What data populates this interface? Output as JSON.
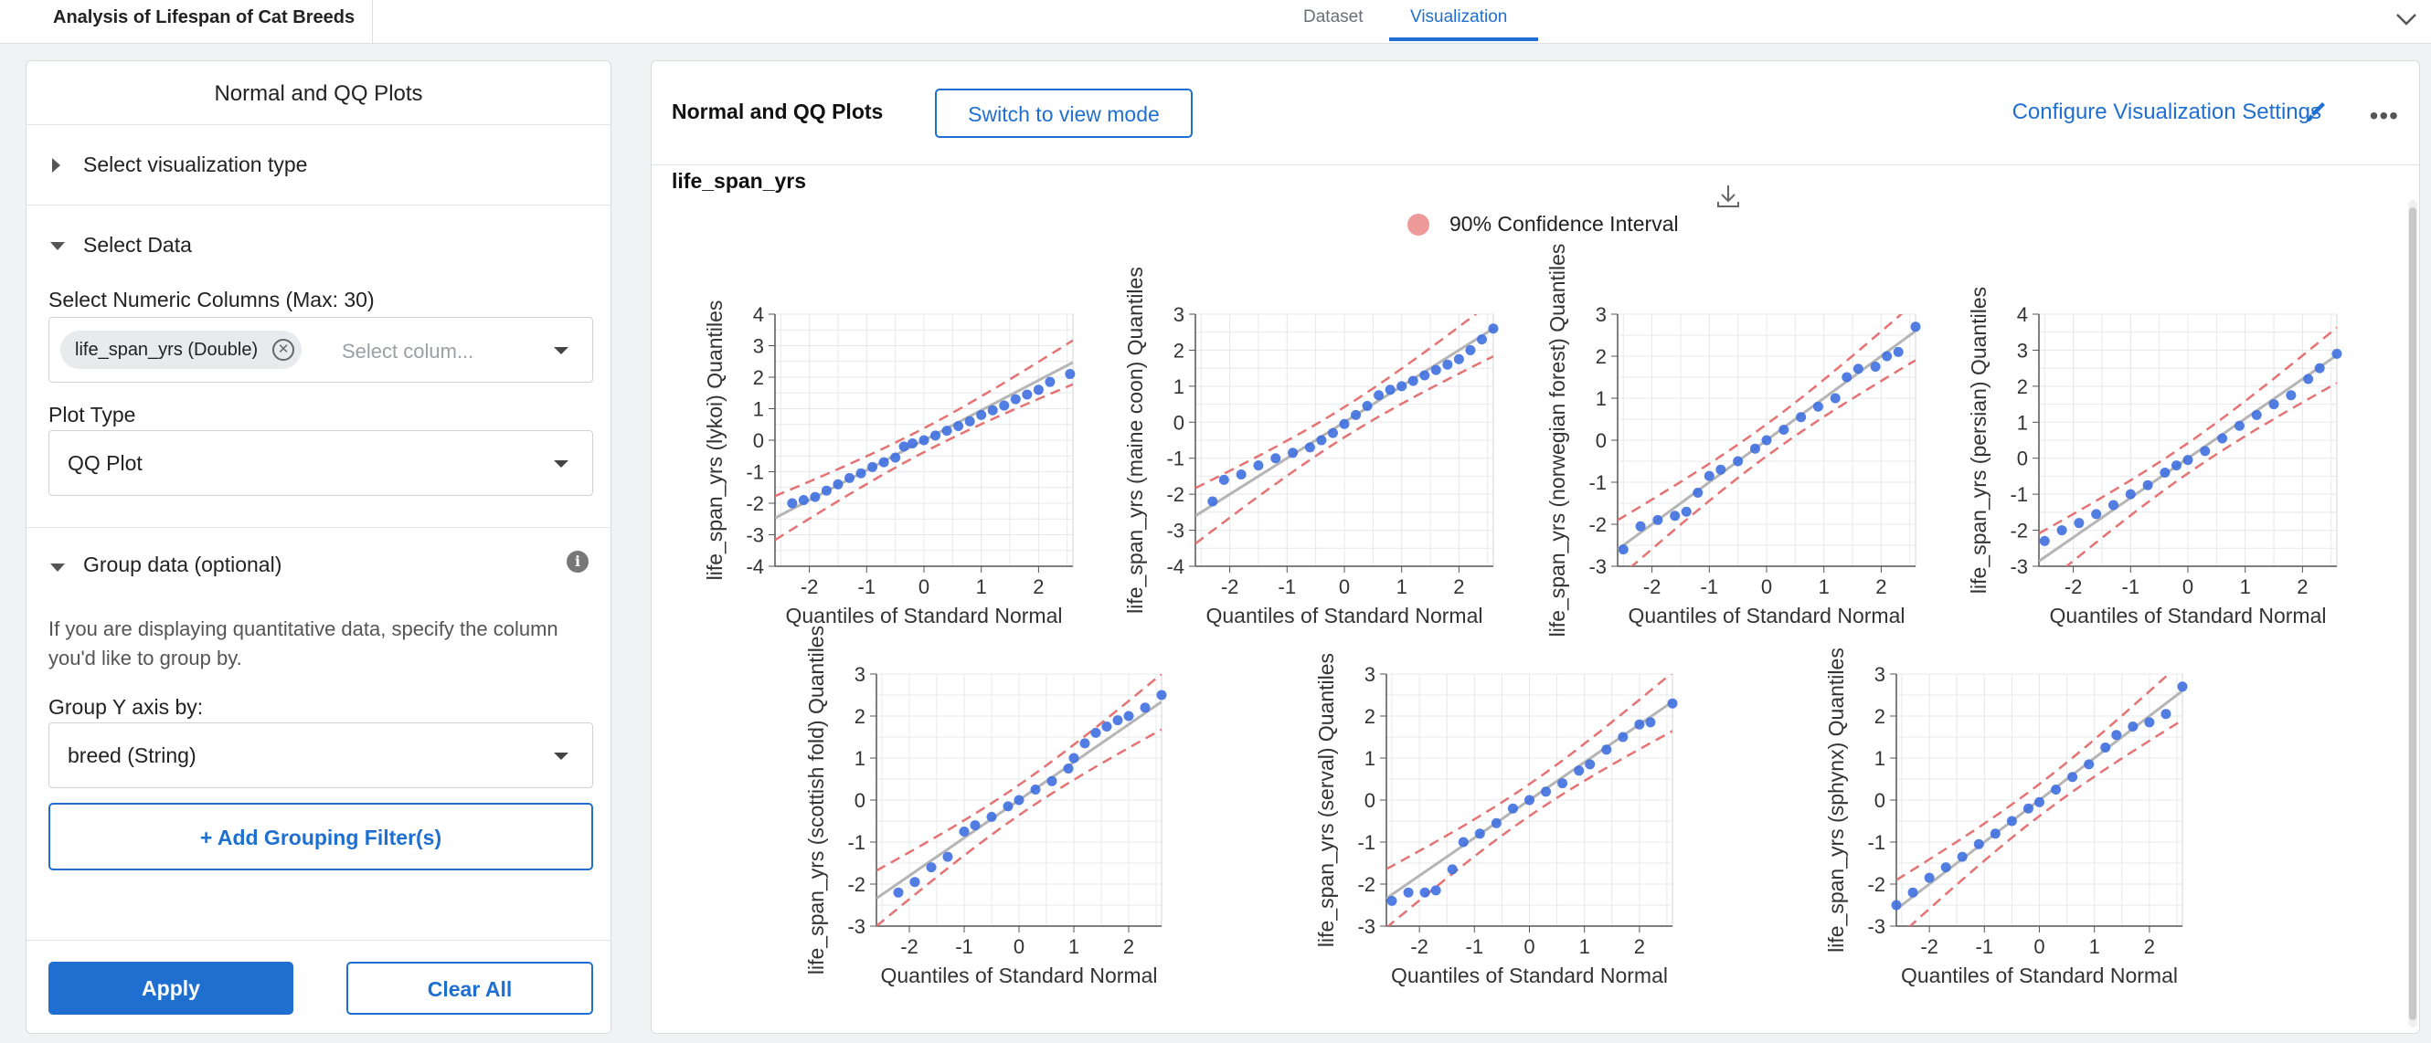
{
  "header": {
    "app_title": "Analysis of Lifespan of Cat Breeds",
    "tabs": [
      {
        "label": "Dataset"
      },
      {
        "label": "Visualization"
      }
    ]
  },
  "sidebar": {
    "title": "Normal and QQ Plots",
    "select_type_label": "Select visualization type",
    "select_data_label": "Select Data",
    "numeric_columns_label": "Select Numeric Columns (Max: 30)",
    "chip_label": "life_span_yrs (Double)",
    "columns_placeholder": "Select colum...",
    "plot_type_label": "Plot Type",
    "plot_type_value": "QQ Plot",
    "group_label": "Group data (optional)",
    "group_help": "If you are displaying quantitative data, specify the column you'd like to group by.",
    "group_by_label": "Group Y axis by:",
    "group_by_value": "breed (String)",
    "add_filter_label": "+ Add Grouping Filter(s)",
    "apply_label": "Apply",
    "clear_label": "Clear All"
  },
  "main": {
    "title": "Normal and QQ Plots",
    "switch_label": "Switch to view mode",
    "config_label": "Configure Visualization Settings",
    "column_title": "life_span_yrs",
    "legend_label": "90% Confidence Interval"
  },
  "colors": {
    "accent": "#1f6fd1",
    "points": "#3f6fe0",
    "ci": "#e57373",
    "fit": "#b5b5b5"
  },
  "chart_data": [
    {
      "type": "scatter",
      "ylabel": "life_span_yrs (lykoi) Quantiles",
      "xlabel": "Quantiles of Standard Normal",
      "xticks": [
        -2,
        -1,
        0,
        1,
        2
      ],
      "yticks": [
        4,
        3,
        2,
        1,
        0,
        -1,
        -2,
        -3,
        -4
      ],
      "xlim": [
        -2.6,
        2.6
      ],
      "ylim": [
        -4,
        4
      ],
      "slope": 0.95,
      "ci_width": 0.38,
      "points": [
        [
          -2.3,
          -2.0
        ],
        [
          -2.1,
          -1.9
        ],
        [
          -1.9,
          -1.8
        ],
        [
          -1.7,
          -1.6
        ],
        [
          -1.5,
          -1.4
        ],
        [
          -1.3,
          -1.2
        ],
        [
          -1.1,
          -1.05
        ],
        [
          -0.9,
          -0.85
        ],
        [
          -0.7,
          -0.7
        ],
        [
          -0.5,
          -0.55
        ],
        [
          -0.35,
          -0.2
        ],
        [
          -0.2,
          -0.1
        ],
        [
          0,
          0
        ],
        [
          0.2,
          0.15
        ],
        [
          0.4,
          0.3
        ],
        [
          0.6,
          0.45
        ],
        [
          0.8,
          0.6
        ],
        [
          1.0,
          0.8
        ],
        [
          1.2,
          0.95
        ],
        [
          1.4,
          1.1
        ],
        [
          1.6,
          1.3
        ],
        [
          1.8,
          1.45
        ],
        [
          2.0,
          1.6
        ],
        [
          2.2,
          1.85
        ],
        [
          2.55,
          2.1
        ]
      ]
    },
    {
      "type": "scatter",
      "ylabel": "life_span_yrs (maine coon) Quantiles",
      "xlabel": "Quantiles of Standard Normal",
      "xticks": [
        -2,
        -1,
        0,
        1,
        2
      ],
      "yticks": [
        3,
        2,
        1,
        0,
        -1,
        -2,
        -3,
        -4
      ],
      "xlim": [
        -2.6,
        2.6
      ],
      "ylim": [
        -4,
        3
      ],
      "slope": 1.0,
      "ci_width": 0.42,
      "points": [
        [
          -2.3,
          -2.2
        ],
        [
          -2.1,
          -1.6
        ],
        [
          -1.8,
          -1.45
        ],
        [
          -1.5,
          -1.2
        ],
        [
          -1.2,
          -1.0
        ],
        [
          -0.9,
          -0.85
        ],
        [
          -0.6,
          -0.7
        ],
        [
          -0.4,
          -0.5
        ],
        [
          -0.2,
          -0.3
        ],
        [
          0,
          -0.05
        ],
        [
          0.2,
          0.2
        ],
        [
          0.4,
          0.45
        ],
        [
          0.6,
          0.75
        ],
        [
          0.8,
          0.9
        ],
        [
          1.0,
          1.0
        ],
        [
          1.2,
          1.15
        ],
        [
          1.4,
          1.3
        ],
        [
          1.6,
          1.45
        ],
        [
          1.8,
          1.6
        ],
        [
          2.0,
          1.75
        ],
        [
          2.2,
          2.0
        ],
        [
          2.4,
          2.3
        ],
        [
          2.6,
          2.6
        ]
      ]
    },
    {
      "type": "scatter",
      "ylabel": "life_span_yrs (norwegian forest) Quantiles",
      "xlabel": "Quantiles of Standard Normal",
      "xticks": [
        -2,
        -1,
        0,
        1,
        2
      ],
      "yticks": [
        3,
        2,
        1,
        0,
        -1,
        -2,
        -3
      ],
      "xlim": [
        -2.6,
        2.6
      ],
      "ylim": [
        -3,
        3
      ],
      "slope": 1.0,
      "ci_width": 0.38,
      "points": [
        [
          -2.5,
          -2.6
        ],
        [
          -2.2,
          -2.05
        ],
        [
          -1.9,
          -1.9
        ],
        [
          -1.6,
          -1.8
        ],
        [
          -1.4,
          -1.7
        ],
        [
          -1.2,
          -1.25
        ],
        [
          -1.0,
          -0.85
        ],
        [
          -0.8,
          -0.7
        ],
        [
          -0.5,
          -0.5
        ],
        [
          -0.2,
          -0.2
        ],
        [
          0,
          0
        ],
        [
          0.3,
          0.25
        ],
        [
          0.6,
          0.55
        ],
        [
          0.9,
          0.8
        ],
        [
          1.2,
          1.0
        ],
        [
          1.4,
          1.5
        ],
        [
          1.6,
          1.7
        ],
        [
          1.9,
          1.75
        ],
        [
          2.1,
          2.0
        ],
        [
          2.3,
          2.1
        ],
        [
          2.6,
          2.7
        ]
      ]
    },
    {
      "type": "scatter",
      "ylabel": "life_span_yrs (persian) Quantiles",
      "xlabel": "Quantiles of Standard Normal",
      "xticks": [
        -2,
        -1,
        0,
        1,
        2
      ],
      "yticks": [
        4,
        3,
        2,
        1,
        0,
        -1,
        -2,
        -3
      ],
      "xlim": [
        -2.6,
        2.6
      ],
      "ylim": [
        -3,
        4
      ],
      "slope": 1.1,
      "ci_width": 0.42,
      "points": [
        [
          -2.5,
          -2.3
        ],
        [
          -2.2,
          -2.0
        ],
        [
          -1.9,
          -1.8
        ],
        [
          -1.6,
          -1.55
        ],
        [
          -1.3,
          -1.3
        ],
        [
          -1.0,
          -1.0
        ],
        [
          -0.7,
          -0.75
        ],
        [
          -0.4,
          -0.4
        ],
        [
          -0.2,
          -0.2
        ],
        [
          0,
          -0.05
        ],
        [
          0.3,
          0.2
        ],
        [
          0.6,
          0.55
        ],
        [
          0.9,
          0.9
        ],
        [
          1.2,
          1.2
        ],
        [
          1.5,
          1.5
        ],
        [
          1.8,
          1.75
        ],
        [
          2.1,
          2.2
        ],
        [
          2.3,
          2.5
        ],
        [
          2.6,
          2.9
        ]
      ]
    },
    {
      "type": "scatter",
      "ylabel": "life_span_yrs (scottish fold) Quantiles",
      "xlabel": "Quantiles of Standard Normal",
      "xticks": [
        -2,
        -1,
        0,
        1,
        2
      ],
      "yticks": [
        3,
        2,
        1,
        0,
        -1,
        -2,
        -3
      ],
      "xlim": [
        -2.6,
        2.6
      ],
      "ylim": [
        -3,
        3
      ],
      "slope": 0.9,
      "ci_width": 0.36,
      "points": [
        [
          -2.2,
          -2.2
        ],
        [
          -1.9,
          -1.95
        ],
        [
          -1.6,
          -1.6
        ],
        [
          -1.3,
          -1.35
        ],
        [
          -1.0,
          -0.75
        ],
        [
          -0.8,
          -0.6
        ],
        [
          -0.5,
          -0.4
        ],
        [
          -0.2,
          -0.15
        ],
        [
          0,
          0
        ],
        [
          0.3,
          0.25
        ],
        [
          0.6,
          0.45
        ],
        [
          0.9,
          0.75
        ],
        [
          1.0,
          1.0
        ],
        [
          1.2,
          1.35
        ],
        [
          1.4,
          1.6
        ],
        [
          1.6,
          1.75
        ],
        [
          1.8,
          1.9
        ],
        [
          2.0,
          2.0
        ],
        [
          2.3,
          2.2
        ],
        [
          2.6,
          2.5
        ]
      ]
    },
    {
      "type": "scatter",
      "ylabel": "life_span_yrs (serval) Quantiles",
      "xlabel": "Quantiles of Standard Normal",
      "xticks": [
        -2,
        -1,
        0,
        1,
        2
      ],
      "yticks": [
        3,
        2,
        1,
        0,
        -1,
        -2,
        -3
      ],
      "xlim": [
        -2.6,
        2.6
      ],
      "ylim": [
        -3,
        3
      ],
      "slope": 0.9,
      "ci_width": 0.38,
      "points": [
        [
          -2.5,
          -2.4
        ],
        [
          -2.2,
          -2.2
        ],
        [
          -1.9,
          -2.2
        ],
        [
          -1.7,
          -2.15
        ],
        [
          -1.4,
          -1.65
        ],
        [
          -1.2,
          -1.0
        ],
        [
          -0.9,
          -0.8
        ],
        [
          -0.6,
          -0.55
        ],
        [
          -0.3,
          -0.2
        ],
        [
          0,
          0
        ],
        [
          0.3,
          0.2
        ],
        [
          0.6,
          0.4
        ],
        [
          0.9,
          0.7
        ],
        [
          1.1,
          0.85
        ],
        [
          1.4,
          1.2
        ],
        [
          1.7,
          1.5
        ],
        [
          2.0,
          1.8
        ],
        [
          2.2,
          1.85
        ],
        [
          2.6,
          2.3
        ]
      ]
    },
    {
      "type": "scatter",
      "ylabel": "life_span_yrs (sphynx) Quantiles",
      "xlabel": "Quantiles of Standard Normal",
      "xticks": [
        -2,
        -1,
        0,
        1,
        2
      ],
      "yticks": [
        3,
        2,
        1,
        0,
        -1,
        -2,
        -3
      ],
      "xlim": [
        -2.6,
        2.6
      ],
      "ylim": [
        -3,
        3
      ],
      "slope": 1.0,
      "ci_width": 0.38,
      "points": [
        [
          -2.6,
          -2.5
        ],
        [
          -2.3,
          -2.2
        ],
        [
          -2.0,
          -1.85
        ],
        [
          -1.7,
          -1.6
        ],
        [
          -1.4,
          -1.35
        ],
        [
          -1.1,
          -1.05
        ],
        [
          -0.8,
          -0.8
        ],
        [
          -0.5,
          -0.5
        ],
        [
          -0.2,
          -0.2
        ],
        [
          0,
          -0.05
        ],
        [
          0.3,
          0.25
        ],
        [
          0.6,
          0.55
        ],
        [
          0.9,
          0.85
        ],
        [
          1.2,
          1.25
        ],
        [
          1.4,
          1.55
        ],
        [
          1.7,
          1.75
        ],
        [
          2.0,
          1.85
        ],
        [
          2.3,
          2.05
        ],
        [
          2.6,
          2.7
        ]
      ]
    }
  ]
}
